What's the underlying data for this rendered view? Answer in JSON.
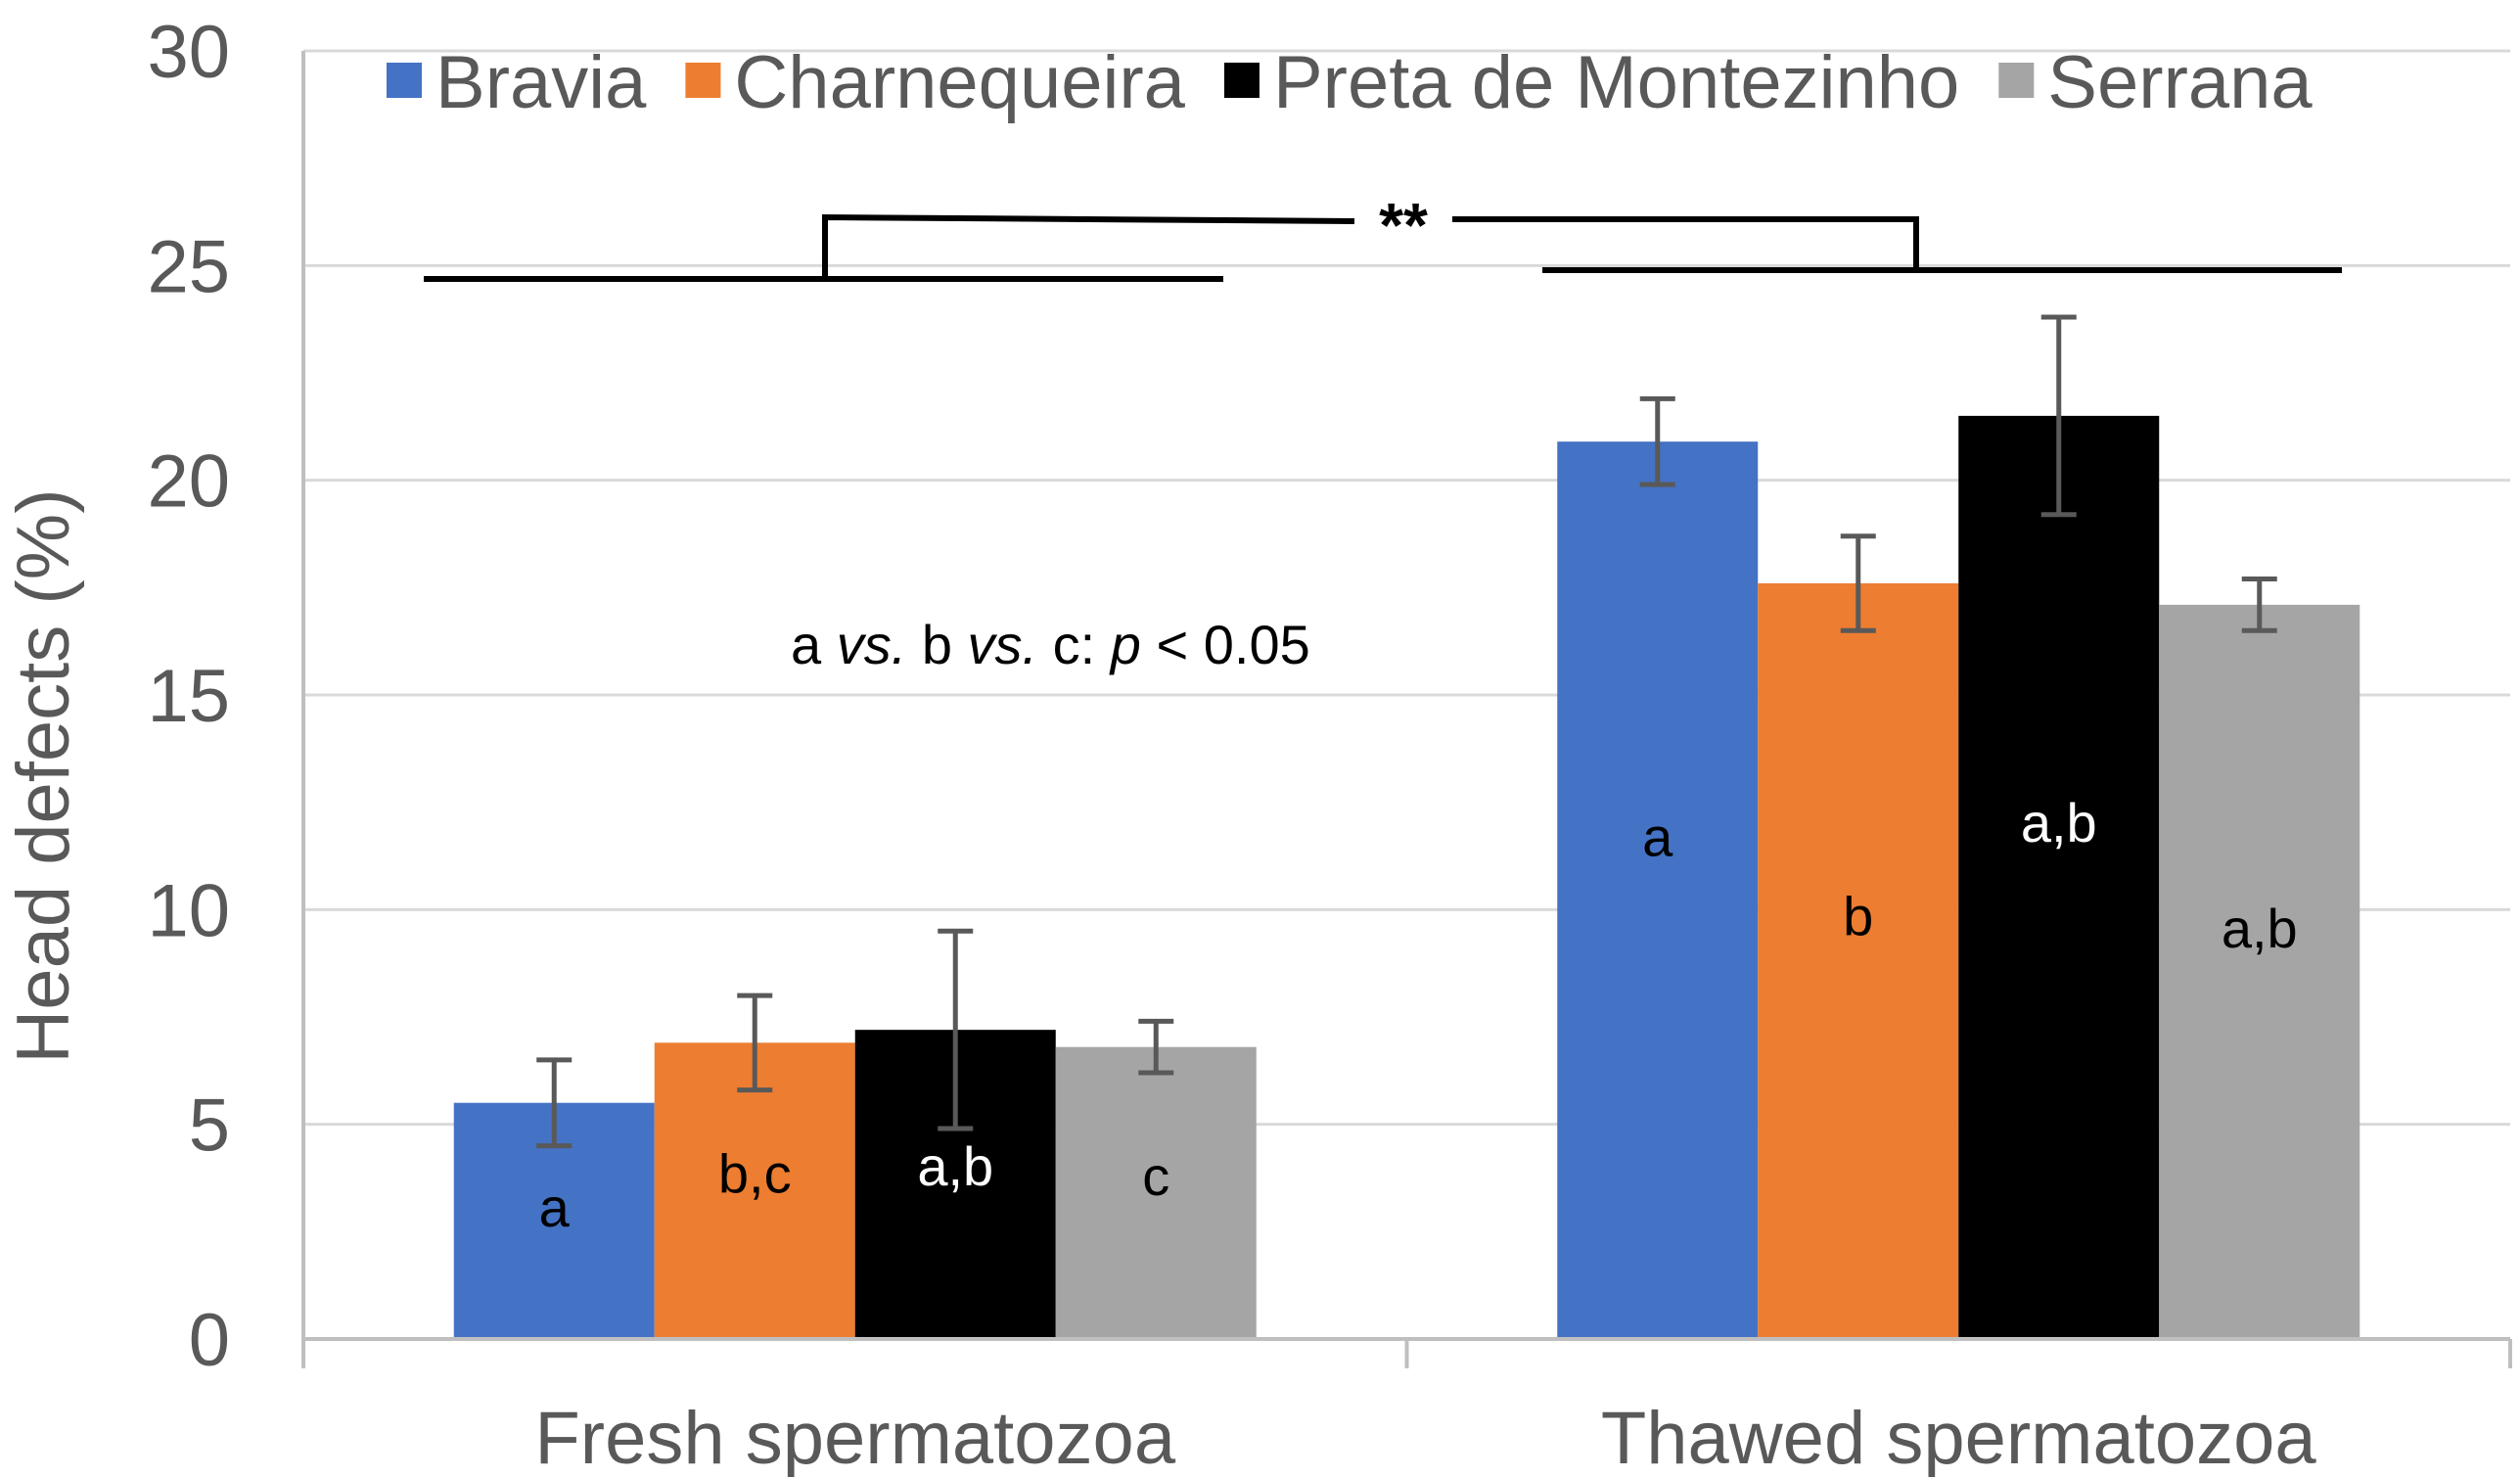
{
  "chart_data": {
    "type": "bar",
    "title": "",
    "xlabel": "",
    "ylabel": "Head defects (%)",
    "ylim": [
      0,
      30
    ],
    "yticks": [
      0,
      5,
      10,
      15,
      20,
      25,
      30
    ],
    "grid": true,
    "legend_position": "top",
    "categories": [
      "Fresh spermatozoa",
      "Thawed spermatozoa"
    ],
    "series": [
      {
        "name": "Bravia",
        "color": "#4472C4",
        "values": [
          5.5,
          20.9
        ],
        "errors": [
          1.0,
          1.0
        ],
        "labels": [
          "a",
          "a"
        ],
        "label_colors": [
          "#000000",
          "#000000"
        ]
      },
      {
        "name": "Charnequeira",
        "color": "#ED7D31",
        "values": [
          6.9,
          17.6
        ],
        "errors": [
          1.1,
          1.1
        ],
        "labels": [
          "b,c",
          "b"
        ],
        "label_colors": [
          "#000000",
          "#000000"
        ]
      },
      {
        "name": "Preta de Montezinho",
        "color": "#000000",
        "values": [
          7.2,
          21.5
        ],
        "errors": [
          2.3,
          2.3
        ],
        "labels": [
          "a,b",
          "a,b"
        ],
        "label_colors": [
          "#ffffff",
          "#ffffff"
        ]
      },
      {
        "name": "Serrana",
        "color": "#A5A5A5",
        "values": [
          6.8,
          17.1
        ],
        "errors": [
          0.6,
          0.6
        ],
        "labels": [
          "c",
          "a,b"
        ],
        "label_colors": [
          "#000000",
          "#000000"
        ]
      }
    ],
    "annotations": {
      "stat_note": {
        "a": "a ",
        "vs1": "vs.",
        "b": " b ",
        "vs2": "vs.",
        "c": " c: ",
        "p": "p",
        "rest": " < 0.05"
      },
      "significance": "**"
    }
  }
}
